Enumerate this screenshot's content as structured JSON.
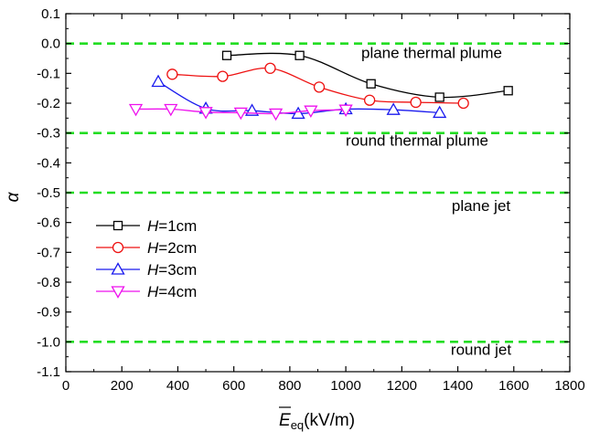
{
  "chart_data": {
    "type": "line",
    "title": "",
    "xlabel": {
      "overlined": "E",
      "subscript": "eq",
      "unit": "(kV/m)"
    },
    "ylabel": "α",
    "xlim": [
      0,
      1800
    ],
    "ylim": [
      -1.1,
      0.1
    ],
    "xticks": [
      "0",
      "200",
      "400",
      "600",
      "800",
      "1000",
      "1200",
      "1400",
      "1600",
      "1800"
    ],
    "yticks": [
      "0.1",
      "0.0",
      "-0.1",
      "-0.2",
      "-0.3",
      "-0.4",
      "-0.5",
      "-0.6",
      "-0.7",
      "-0.8",
      "-0.9",
      "-1.0",
      "-1.1"
    ],
    "grid": false,
    "legend_position": "lower-left",
    "reference_lines": [
      {
        "y": 0.0,
        "label": "plane thermal plume",
        "color": "#22dd22"
      },
      {
        "y": -0.3,
        "label": "round thermal plume",
        "color": "#22dd22"
      },
      {
        "y": -0.5,
        "label": "plane jet",
        "color": "#22dd22"
      },
      {
        "y": -1.0,
        "label": "round jet",
        "color": "#22dd22"
      }
    ],
    "series": [
      {
        "name_prefix": "H",
        "name_suffix": "=1cm",
        "color": "#000000",
        "marker": "square",
        "x": [
          575,
          835,
          1090,
          1335,
          1580
        ],
        "y": [
          -0.04,
          -0.04,
          -0.135,
          -0.18,
          -0.158
        ]
      },
      {
        "name_prefix": "H",
        "name_suffix": "=2cm",
        "color": "#ee1111",
        "marker": "circle",
        "x": [
          380,
          560,
          730,
          905,
          1085,
          1250,
          1420
        ],
        "y": [
          -0.103,
          -0.11,
          -0.083,
          -0.146,
          -0.19,
          -0.197,
          -0.2
        ]
      },
      {
        "name_prefix": "H",
        "name_suffix": "=3cm",
        "color": "#1a1aee",
        "marker": "triangle-up",
        "x": [
          330,
          500,
          665,
          830,
          1000,
          1170,
          1335
        ],
        "y": [
          -0.128,
          -0.218,
          -0.225,
          -0.235,
          -0.22,
          -0.222,
          -0.232
        ]
      },
      {
        "name_prefix": "H",
        "name_suffix": "=4cm",
        "color": "#ee11ee",
        "marker": "triangle-down",
        "x": [
          250,
          375,
          500,
          625,
          750,
          875,
          1000
        ],
        "y": [
          -0.22,
          -0.22,
          -0.23,
          -0.232,
          -0.235,
          -0.225,
          -0.222
        ]
      }
    ]
  }
}
